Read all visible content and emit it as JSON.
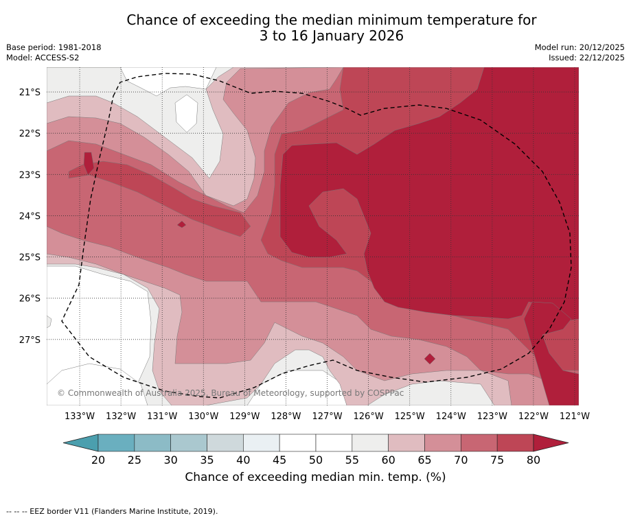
{
  "header": {
    "title_line1": "Chance of exceeding the median minimum temperature for",
    "title_line2": "3 to 16 January 2026",
    "base_period": "Base period: 1981-2018",
    "model": "Model: ACCESS-S2",
    "model_run": "Model run: 20/12/2025",
    "issued": "Issued: 22/12/2025"
  },
  "colors": {
    "c_lt20": "#4b9fae",
    "c_20_25": "#6aafbf",
    "c_25_30": "#8cbbc6",
    "c_30_35": "#aac8cf",
    "c_35_40": "#cfd9dc",
    "c_40_45": "#eaf0f3",
    "c_45_50": "#ffffff",
    "c_50_55": "#ffffff",
    "c_55_60": "#eeeeed",
    "c_60_65": "#e0bcc0",
    "c_65_70": "#d48f98",
    "c_70_75": "#c86673",
    "c_75_80": "#be4656",
    "c_gt80": "#b01f3b"
  },
  "chart_data": {
    "type": "heatmap",
    "title": "Chance of exceeding the median minimum temperature for 3 to 16 January 2026",
    "lon_range": [
      -133.8,
      -120.9
    ],
    "lat_range": [
      -28.6,
      -20.4
    ],
    "x_ticks": [
      "133°W",
      "132°W",
      "131°W",
      "130°W",
      "129°W",
      "128°W",
      "127°W",
      "126°W",
      "125°W",
      "124°W",
      "123°W",
      "122°W",
      "121°W"
    ],
    "y_ticks": [
      "21°S",
      "22°S",
      "23°S",
      "24°S",
      "25°S",
      "26°S",
      "27°S"
    ],
    "grid": true,
    "colorbar": {
      "label": "Chance of exceeding median min. temp. (%)",
      "ticks": [
        "20",
        "25",
        "30",
        "35",
        "40",
        "45",
        "50",
        "55",
        "60",
        "65",
        "70",
        "75",
        "80"
      ],
      "extend": "both"
    },
    "regions": [
      {
        "category": "55-60",
        "description": "near-median band in west and southwest"
      },
      {
        "category": "60-65",
        "description": "transition zone"
      },
      {
        "category": "65-70",
        "description": "central and southern areas"
      },
      {
        "category": "70-75",
        "description": "around core"
      },
      {
        "category": "75-80",
        "description": "southeast and west-central"
      },
      {
        "category": ">80",
        "description": "large core from 128°W eastward, 22°S to 26°S"
      }
    ],
    "annotations": {
      "copyright": "© Commonwealth of Australia 2025, Bureau of Meteorology, supported by COSPPac",
      "eez_note": "--  --  -- EEZ border V11 (Flanders Marine Institute, 2019)."
    }
  }
}
